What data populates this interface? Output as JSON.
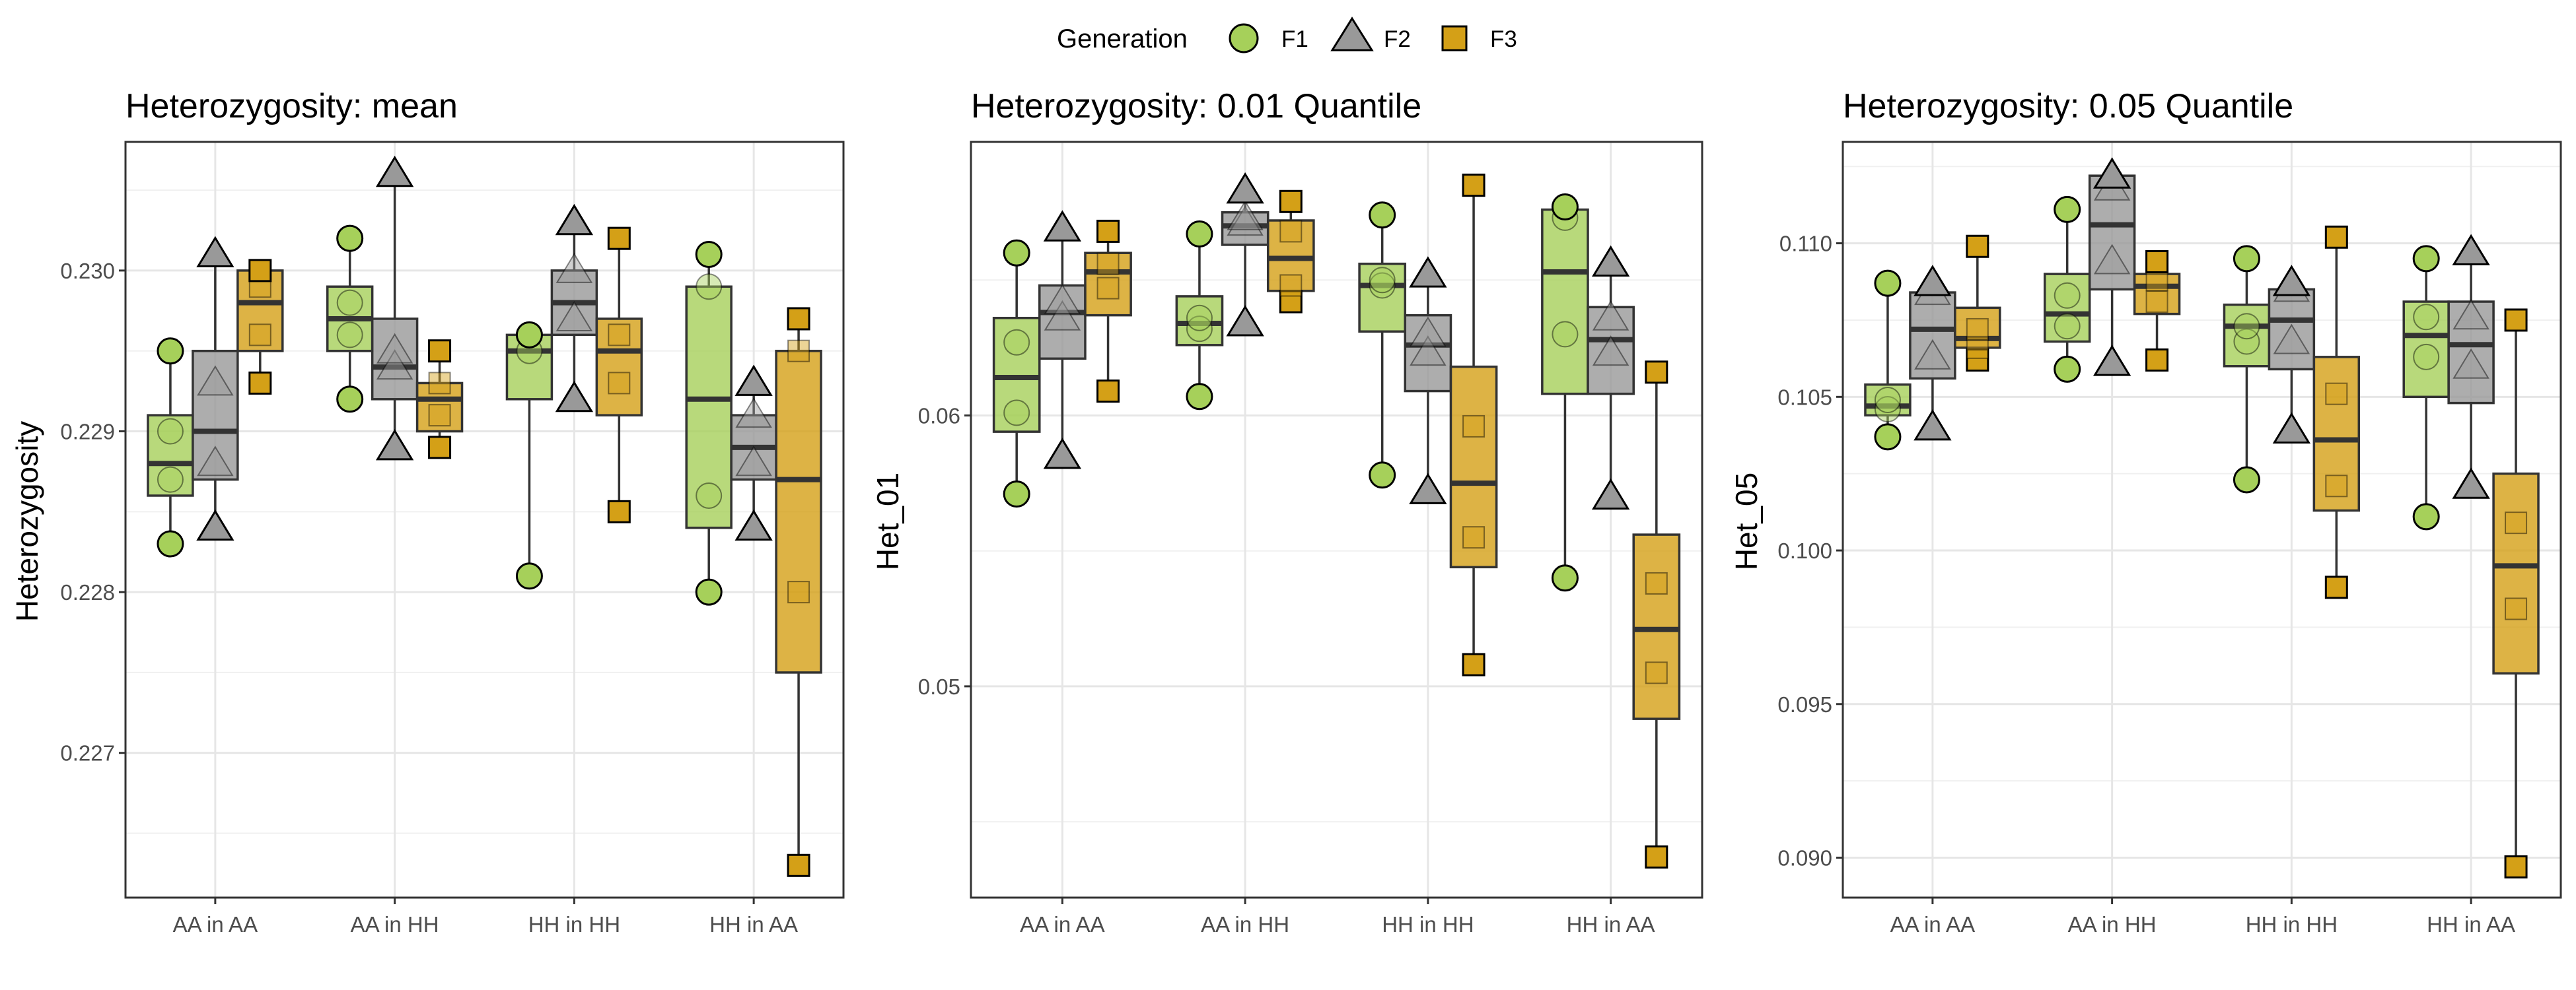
{
  "legend": {
    "title": "Generation",
    "items": [
      {
        "label": "F1",
        "shape": "circle",
        "color": "#a6d05a"
      },
      {
        "label": "F2",
        "shape": "triangle",
        "color": "#999999"
      },
      {
        "label": "F3",
        "shape": "square",
        "color": "#d4a017"
      }
    ]
  },
  "chart_data": [
    {
      "type": "box",
      "title": "Heterozygosity: mean",
      "xlabel": "",
      "ylabel": "Heterozygosity",
      "categories": [
        "AA in AA",
        "AA in HH",
        "HH in HH",
        "HH in AA"
      ],
      "ylim": [
        0.2261,
        0.2308
      ],
      "yticks": [
        0.227,
        0.228,
        0.229,
        0.23
      ],
      "ytick_labels": [
        "0.227",
        "0.228",
        "0.229",
        "0.230"
      ],
      "grid": true,
      "series": [
        {
          "name": "F1",
          "boxes": [
            {
              "min": 0.2283,
              "q1": 0.2286,
              "median": 0.2288,
              "q3": 0.2291,
              "max": 0.2295,
              "points": [
                0.2283,
                0.2287,
                0.229,
                0.2295
              ]
            },
            {
              "min": 0.2292,
              "q1": 0.2295,
              "median": 0.2297,
              "q3": 0.2299,
              "max": 0.2302,
              "points": [
                0.2292,
                0.2296,
                0.2298,
                0.2302
              ]
            },
            {
              "min": 0.2281,
              "q1": 0.2292,
              "median": 0.2295,
              "q3": 0.2296,
              "max": 0.2296,
              "points": [
                0.2281,
                0.2295,
                0.2296
              ]
            },
            {
              "min": 0.228,
              "q1": 0.2284,
              "median": 0.2292,
              "q3": 0.2299,
              "max": 0.2301,
              "points": [
                0.228,
                0.2286,
                0.2299,
                0.2301
              ]
            }
          ]
        },
        {
          "name": "F2",
          "boxes": [
            {
              "min": 0.2284,
              "q1": 0.2287,
              "median": 0.229,
              "q3": 0.2295,
              "max": 0.2301,
              "points": [
                0.2284,
                0.2288,
                0.2293,
                0.2301
              ]
            },
            {
              "min": 0.2289,
              "q1": 0.2292,
              "median": 0.2294,
              "q3": 0.2297,
              "max": 0.2306,
              "points": [
                0.2289,
                0.2294,
                0.2295,
                0.2306
              ]
            },
            {
              "min": 0.2292,
              "q1": 0.2296,
              "median": 0.2298,
              "q3": 0.23,
              "max": 0.2303,
              "points": [
                0.2292,
                0.2297,
                0.23,
                0.2303
              ]
            },
            {
              "min": 0.2284,
              "q1": 0.2287,
              "median": 0.2289,
              "q3": 0.2291,
              "max": 0.2293,
              "points": [
                0.2284,
                0.2288,
                0.2291,
                0.2293
              ]
            }
          ]
        },
        {
          "name": "F3",
          "boxes": [
            {
              "min": 0.2293,
              "q1": 0.2295,
              "median": 0.2298,
              "q3": 0.23,
              "max": 0.23,
              "points": [
                0.2293,
                0.2296,
                0.2299,
                0.23
              ]
            },
            {
              "min": 0.2289,
              "q1": 0.229,
              "median": 0.2292,
              "q3": 0.2293,
              "max": 0.2295,
              "points": [
                0.2289,
                0.2291,
                0.2293,
                0.2295
              ]
            },
            {
              "min": 0.2285,
              "q1": 0.2291,
              "median": 0.2295,
              "q3": 0.2297,
              "max": 0.2302,
              "points": [
                0.2285,
                0.2293,
                0.2296,
                0.2302
              ]
            },
            {
              "min": 0.2263,
              "q1": 0.2275,
              "median": 0.2287,
              "q3": 0.2295,
              "max": 0.2297,
              "points": [
                0.2263,
                0.228,
                0.2295,
                0.2297
              ]
            }
          ]
        }
      ]
    },
    {
      "type": "box",
      "title": "Heterozygosity: 0.01 Quantile",
      "xlabel": "",
      "ylabel": "Het_01",
      "categories": [
        "AA in AA",
        "AA in HH",
        "HH in HH",
        "HH in AA"
      ],
      "ylim": [
        0.0422,
        0.0701
      ],
      "yticks": [
        0.05,
        0.06
      ],
      "ytick_labels": [
        "0.05",
        "0.06"
      ],
      "grid": true,
      "series": [
        {
          "name": "F1",
          "boxes": [
            {
              "min": 0.0571,
              "q1": 0.0594,
              "median": 0.0614,
              "q3": 0.0636,
              "max": 0.066,
              "points": [
                0.0571,
                0.0601,
                0.0627,
                0.066
              ]
            },
            {
              "min": 0.0607,
              "q1": 0.0626,
              "median": 0.0634,
              "q3": 0.0644,
              "max": 0.0667,
              "points": [
                0.0607,
                0.0632,
                0.0636,
                0.0667
              ]
            },
            {
              "min": 0.0578,
              "q1": 0.0631,
              "median": 0.0648,
              "q3": 0.0656,
              "max": 0.0674,
              "points": [
                0.0578,
                0.0648,
                0.065,
                0.0674
              ]
            },
            {
              "min": 0.054,
              "q1": 0.0608,
              "median": 0.0653,
              "q3": 0.0676,
              "max": 0.0677,
              "points": [
                0.054,
                0.063,
                0.0673,
                0.0677
              ]
            }
          ]
        },
        {
          "name": "F2",
          "boxes": [
            {
              "min": 0.0585,
              "q1": 0.0621,
              "median": 0.0638,
              "q3": 0.0648,
              "max": 0.0669,
              "points": [
                0.0585,
                0.0636,
                0.0642,
                0.0669
              ]
            },
            {
              "min": 0.0634,
              "q1": 0.0663,
              "median": 0.067,
              "q3": 0.0675,
              "max": 0.0683,
              "points": [
                0.0634,
                0.0671,
                0.0673,
                0.0683
              ]
            },
            {
              "min": 0.0572,
              "q1": 0.0609,
              "median": 0.0626,
              "q3": 0.0637,
              "max": 0.0652,
              "points": [
                0.0572,
                0.0623,
                0.063,
                0.0652
              ]
            },
            {
              "min": 0.057,
              "q1": 0.0608,
              "median": 0.0628,
              "q3": 0.064,
              "max": 0.0656,
              "points": [
                0.057,
                0.0623,
                0.0636,
                0.0656
              ]
            }
          ]
        },
        {
          "name": "F3",
          "boxes": [
            {
              "min": 0.0609,
              "q1": 0.0637,
              "median": 0.0653,
              "q3": 0.066,
              "max": 0.0668,
              "points": [
                0.0609,
                0.0647,
                0.0656,
                0.0668
              ]
            },
            {
              "min": 0.0642,
              "q1": 0.0646,
              "median": 0.0658,
              "q3": 0.0672,
              "max": 0.0679,
              "points": [
                0.0642,
                0.0648,
                0.0668,
                0.0679
              ]
            },
            {
              "min": 0.0508,
              "q1": 0.0544,
              "median": 0.0575,
              "q3": 0.0618,
              "max": 0.0685,
              "points": [
                0.0508,
                0.0555,
                0.0596,
                0.0685
              ]
            },
            {
              "min": 0.0437,
              "q1": 0.0488,
              "median": 0.0521,
              "q3": 0.0556,
              "max": 0.0616,
              "points": [
                0.0437,
                0.0505,
                0.0538,
                0.0616
              ]
            }
          ]
        }
      ]
    },
    {
      "type": "box",
      "title": "Heterozygosity: 0.05 Quantile",
      "xlabel": "",
      "ylabel": "Het_05",
      "categories": [
        "AA in AA",
        "AA in HH",
        "HH in HH",
        "HH in AA"
      ],
      "ylim": [
        0.0887,
        0.1133
      ],
      "yticks": [
        0.09,
        0.095,
        0.1,
        0.105,
        0.11
      ],
      "ytick_labels": [
        "0.090",
        "0.095",
        "0.100",
        "0.105",
        "0.110"
      ],
      "grid": true,
      "series": [
        {
          "name": "F1",
          "boxes": [
            {
              "min": 0.1037,
              "q1": 0.1044,
              "median": 0.1047,
              "q3": 0.1054,
              "max": 0.1087,
              "points": [
                0.1037,
                0.1046,
                0.1049,
                0.1087
              ]
            },
            {
              "min": 0.1059,
              "q1": 0.1068,
              "median": 0.1077,
              "q3": 0.109,
              "max": 0.1111,
              "points": [
                0.1059,
                0.1073,
                0.1083,
                0.1111
              ]
            },
            {
              "min": 0.1023,
              "q1": 0.106,
              "median": 0.1073,
              "q3": 0.108,
              "max": 0.1095,
              "points": [
                0.1023,
                0.1068,
                0.1073,
                0.1095
              ]
            },
            {
              "min": 0.1011,
              "q1": 0.105,
              "median": 0.107,
              "q3": 0.1081,
              "max": 0.1095,
              "points": [
                0.1011,
                0.1063,
                0.1076,
                0.1095
              ]
            }
          ]
        },
        {
          "name": "F2",
          "boxes": [
            {
              "min": 0.104,
              "q1": 0.1056,
              "median": 0.1072,
              "q3": 0.1084,
              "max": 0.1087,
              "points": [
                0.104,
                0.1063,
                0.1084,
                0.1087
              ]
            },
            {
              "min": 0.1061,
              "q1": 0.1085,
              "median": 0.1106,
              "q3": 0.1122,
              "max": 0.1122,
              "points": [
                0.1061,
                0.1094,
                0.1118,
                0.1122
              ]
            },
            {
              "min": 0.1039,
              "q1": 0.1059,
              "median": 0.1075,
              "q3": 0.1085,
              "max": 0.1087,
              "points": [
                0.1039,
                0.1068,
                0.1085,
                0.1087
              ]
            },
            {
              "min": 0.1021,
              "q1": 0.1048,
              "median": 0.1067,
              "q3": 0.1081,
              "max": 0.1097,
              "points": [
                0.1021,
                0.106,
                0.1076,
                0.1097
              ]
            }
          ]
        },
        {
          "name": "F3",
          "boxes": [
            {
              "min": 0.1062,
              "q1": 0.1066,
              "median": 0.1069,
              "q3": 0.1079,
              "max": 0.1099,
              "points": [
                0.1062,
                0.1066,
                0.1072,
                0.1099
              ]
            },
            {
              "min": 0.1062,
              "q1": 0.1077,
              "median": 0.1086,
              "q3": 0.109,
              "max": 0.1094,
              "points": [
                0.1062,
                0.1081,
                0.1088,
                0.1094
              ]
            },
            {
              "min": 0.0988,
              "q1": 0.1013,
              "median": 0.1036,
              "q3": 0.1063,
              "max": 0.1102,
              "points": [
                0.0988,
                0.1021,
                0.1051,
                0.1102
              ]
            },
            {
              "min": 0.0897,
              "q1": 0.096,
              "median": 0.0995,
              "q3": 0.1025,
              "max": 0.1075,
              "points": [
                0.0897,
                0.0981,
                0.1009,
                0.1075
              ]
            }
          ]
        }
      ]
    }
  ]
}
